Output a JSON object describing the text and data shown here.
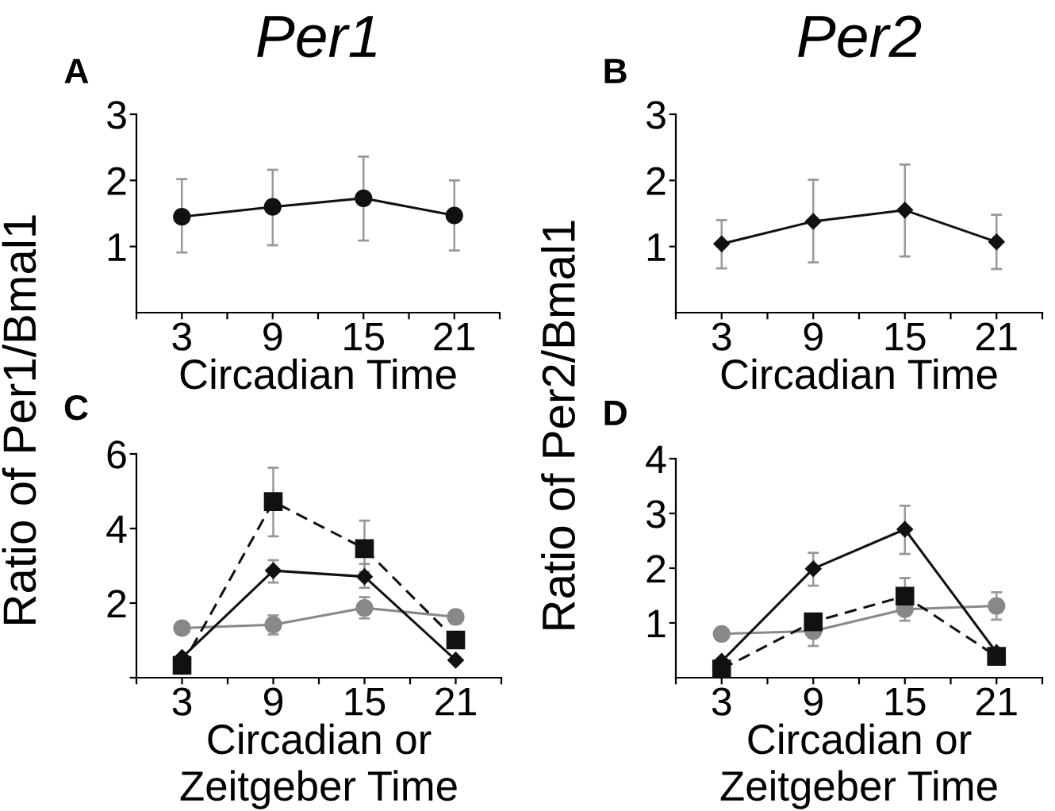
{
  "chart_data": [
    {
      "type": "line",
      "title": "Per1",
      "annotations": [
        "A"
      ],
      "xlabel": "Circadian Time",
      "x": [
        3,
        9,
        15,
        21
      ],
      "xlim": [
        0,
        24
      ],
      "xticks": [
        {
          "value": 0,
          "label": null
        },
        3,
        {
          "value": 6,
          "label": null
        },
        9,
        {
          "value": 12,
          "label": null
        },
        15,
        {
          "value": 18,
          "label": null
        },
        21,
        {
          "value": 24,
          "label": null
        }
      ],
      "ylim": [
        0,
        3
      ],
      "yticks": [
        1,
        2,
        3
      ],
      "grid": false,
      "series": [
        {
          "color": "#111111",
          "marker": "circle",
          "line_style": "solid",
          "values": [
            1.45,
            1.6,
            1.73,
            1.47
          ],
          "errors": [
            [
              0.91,
              2.02
            ],
            [
              1.02,
              2.16
            ],
            [
              1.09,
              2.36
            ],
            [
              0.94,
              2.0
            ]
          ]
        }
      ]
    },
    {
      "type": "line",
      "title": "Per2",
      "annotations": [
        "B"
      ],
      "xlabel": "Circadian Time",
      "x": [
        3,
        9,
        15,
        21
      ],
      "xlim": [
        0,
        24
      ],
      "xticks": [
        {
          "value": 0,
          "label": null
        },
        3,
        {
          "value": 6,
          "label": null
        },
        9,
        {
          "value": 12,
          "label": null
        },
        15,
        {
          "value": 18,
          "label": null
        },
        21,
        {
          "value": 24,
          "label": null
        }
      ],
      "ylim": [
        0,
        3
      ],
      "yticks": [
        1,
        2,
        3
      ],
      "grid": false,
      "series": [
        {
          "color": "#111111",
          "marker": "diamond",
          "line_style": "solid",
          "values": [
            1.04,
            1.38,
            1.55,
            1.07
          ],
          "errors": [
            [
              0.67,
              1.4
            ],
            [
              0.76,
              2.01
            ],
            [
              0.85,
              2.24
            ],
            [
              0.66,
              1.48
            ]
          ]
        }
      ]
    },
    {
      "type": "line",
      "annotations": [
        "C"
      ],
      "ylabel": "Ratio of Per1/Bmal1",
      "xlabel": "Circadian or\nZeitgeber Time",
      "x": [
        3,
        9,
        15,
        21
      ],
      "xlim": [
        0,
        24
      ],
      "xticks": [
        {
          "value": 0,
          "label": null
        },
        3,
        {
          "value": 6,
          "label": null
        },
        9,
        {
          "value": 12,
          "label": null
        },
        15,
        {
          "value": 18,
          "label": null
        },
        21,
        {
          "value": 24,
          "label": null
        }
      ],
      "ylim": [
        0,
        6
      ],
      "yticks": [
        {
          "value": 0,
          "label": null
        },
        2,
        4,
        6
      ],
      "grid": false,
      "series": [
        {
          "color": "#888888",
          "marker": "circle",
          "line_style": "solid",
          "values": [
            1.33,
            1.42,
            1.87,
            1.63
          ],
          "errors": [
            null,
            [
              1.16,
              1.67
            ],
            [
              1.59,
              2.16
            ],
            [
              1.45,
              1.8
            ]
          ]
        },
        {
          "color": "#111111",
          "marker": "square",
          "line_style": "dashed",
          "values": [
            0.33,
            4.72,
            3.46,
            1.01
          ],
          "errors": [
            null,
            [
              3.79,
              5.63
            ],
            [
              2.84,
              4.21
            ],
            null
          ]
        },
        {
          "color": "#111111",
          "marker": "diamond",
          "line_style": "solid",
          "values": [
            0.54,
            2.87,
            2.71,
            0.47
          ],
          "errors": [
            null,
            [
              2.55,
              3.15
            ],
            [
              2.41,
              3.05
            ],
            null
          ]
        }
      ]
    },
    {
      "type": "line",
      "annotations": [
        "D"
      ],
      "ylabel": "Ratio of Per2/Bmal1",
      "xlabel": "Circadian or\nZeitgeber Time",
      "x": [
        3,
        9,
        15,
        21
      ],
      "xlim": [
        0,
        24
      ],
      "xticks": [
        {
          "value": 0,
          "label": null
        },
        3,
        {
          "value": 6,
          "label": null
        },
        9,
        {
          "value": 12,
          "label": null
        },
        15,
        {
          "value": 18,
          "label": null
        },
        21,
        {
          "value": 24,
          "label": null
        }
      ],
      "ylim": [
        0,
        4
      ],
      "yticks": [
        1,
        2,
        3,
        4
      ],
      "grid": false,
      "series": [
        {
          "color": "#888888",
          "marker": "circle",
          "line_style": "solid",
          "values": [
            0.8,
            0.85,
            1.25,
            1.31
          ],
          "errors": [
            null,
            [
              0.58,
              0.85
            ],
            [
              1.04,
              1.25
            ],
            [
              1.06,
              1.56
            ]
          ]
        },
        {
          "color": "#111111",
          "marker": "square",
          "line_style": "dashed",
          "values": [
            0.16,
            1.02,
            1.49,
            0.39
          ],
          "errors": [
            null,
            null,
            [
              1.49,
              1.82
            ],
            null
          ]
        },
        {
          "color": "#111111",
          "marker": "diamond",
          "line_style": "solid",
          "values": [
            0.3,
            1.99,
            2.71,
            0.46
          ],
          "errors": [
            null,
            [
              1.68,
              2.28
            ],
            [
              2.26,
              3.14
            ],
            null
          ]
        }
      ]
    }
  ]
}
